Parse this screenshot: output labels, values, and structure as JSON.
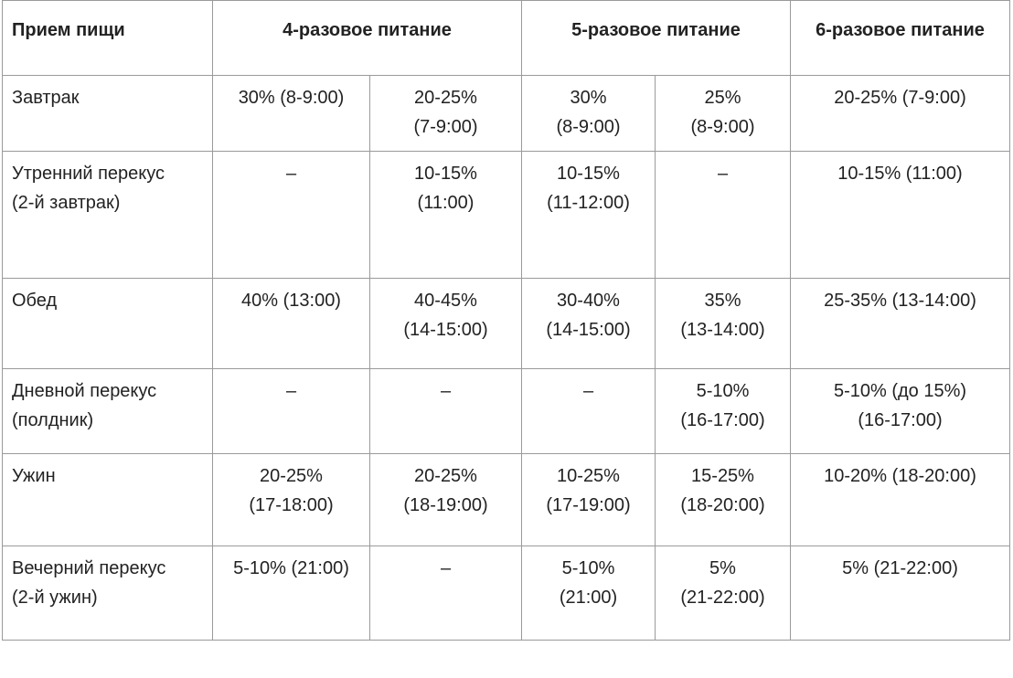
{
  "header": {
    "label": "Прием пищи",
    "four": "4-разовое питание",
    "five": "5-разовое питание",
    "six": "6-разовое питание"
  },
  "rows": [
    {
      "meal": "Завтрак",
      "cells": [
        "30% (8-9:00)",
        "20-25%\n(7-9:00)",
        "30%\n(8-9:00)",
        "25%\n(8-9:00)",
        "20-25% (7-9:00)"
      ]
    },
    {
      "meal": "Утренний перекус\n(2-й завтрак)",
      "cells": [
        "–",
        "10-15%\n(11:00)",
        "10-15%\n(11-12:00)",
        "–",
        "10-15% (11:00)"
      ]
    },
    {
      "meal": "Обед",
      "cells": [
        "40% (13:00)",
        "40-45%\n(14-15:00)",
        "30-40%\n(14-15:00)",
        "35%\n(13-14:00)",
        "25-35% (13-14:00)"
      ]
    },
    {
      "meal": "Дневной перекус\n(полдник)",
      "cells": [
        "–",
        "–",
        "–",
        "5-10%\n(16-17:00)",
        "5-10% (до 15%)\n(16-17:00)"
      ]
    },
    {
      "meal": "Ужин",
      "cells": [
        "20-25%\n(17-18:00)",
        "20-25%\n(18-19:00)",
        "10-25%\n(17-19:00)",
        "15-25%\n(18-20:00)",
        "10-20% (18-20:00)"
      ]
    },
    {
      "meal": "Вечерний перекус\n(2-й ужин)",
      "cells": [
        "5-10% (21:00)",
        "–",
        "5-10%\n(21:00)",
        "5%\n(21-22:00)",
        "5% (21-22:00)"
      ]
    }
  ]
}
